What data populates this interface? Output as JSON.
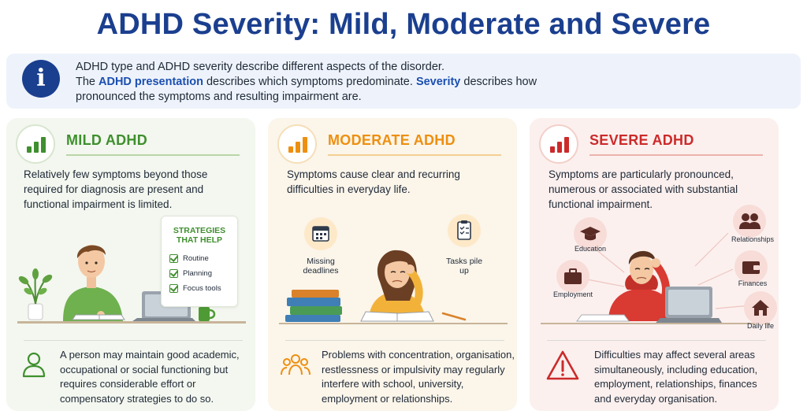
{
  "page": {
    "title": "ADHD Severity: Mild, Moderate and Severe"
  },
  "info": {
    "icon": "info-icon",
    "line1": "ADHD type and ADHD severity describe different aspects of the disorder.",
    "line2_prefix": "The ",
    "line2_highlight1": "ADHD presentation",
    "line2_middle": " describes which symptoms predominate. ",
    "line2_highlight2": "Severity",
    "line2_suffix": " describes how",
    "line3": "pronounced the symptoms and resulting impairment are."
  },
  "colors": {
    "title_blue": "#1b3f8f",
    "mild_green": "#3f8f2e",
    "moderate_orange": "#ee8f10",
    "severe_red": "#cc2a2a"
  },
  "mild": {
    "title": "MILD ADHD",
    "description": "Relatively few symptoms beyond those required for diagnosis are present and functional impairment is limited.",
    "strategies_title": "STRATEGIES THAT HELP",
    "strategies": [
      "Routine",
      "Planning",
      "Focus tools"
    ],
    "footer_icon": "person-icon",
    "footer": "A person may maintain good academic, occupational or social functioning but requires considerable effort or compensatory strategies to do so."
  },
  "moderate": {
    "title": "MODERATE ADHD",
    "description": "Symptoms cause clear and recurring difficulties in everyday life.",
    "label_left": "Missing deadlines",
    "label_right": "Tasks pile up",
    "footer_icon": "group-icon",
    "footer": "Problems with concentration, organisation, restlessness or impulsivity may regularly interfere with school, university, employment or relationships."
  },
  "severe": {
    "title": "SEVERE ADHD",
    "description": "Symptoms are particularly pronounced, numerous or associated with substantial functional impairment.",
    "areas": {
      "education": "Education",
      "employment": "Employment",
      "relationships": "Relationships",
      "finances": "Finances",
      "daily_life": "Daily life"
    },
    "footer_icon": "warning-icon",
    "footer": "Difficulties may affect several areas simultaneously, including education, employment, relationships, finances and everyday organisation."
  }
}
